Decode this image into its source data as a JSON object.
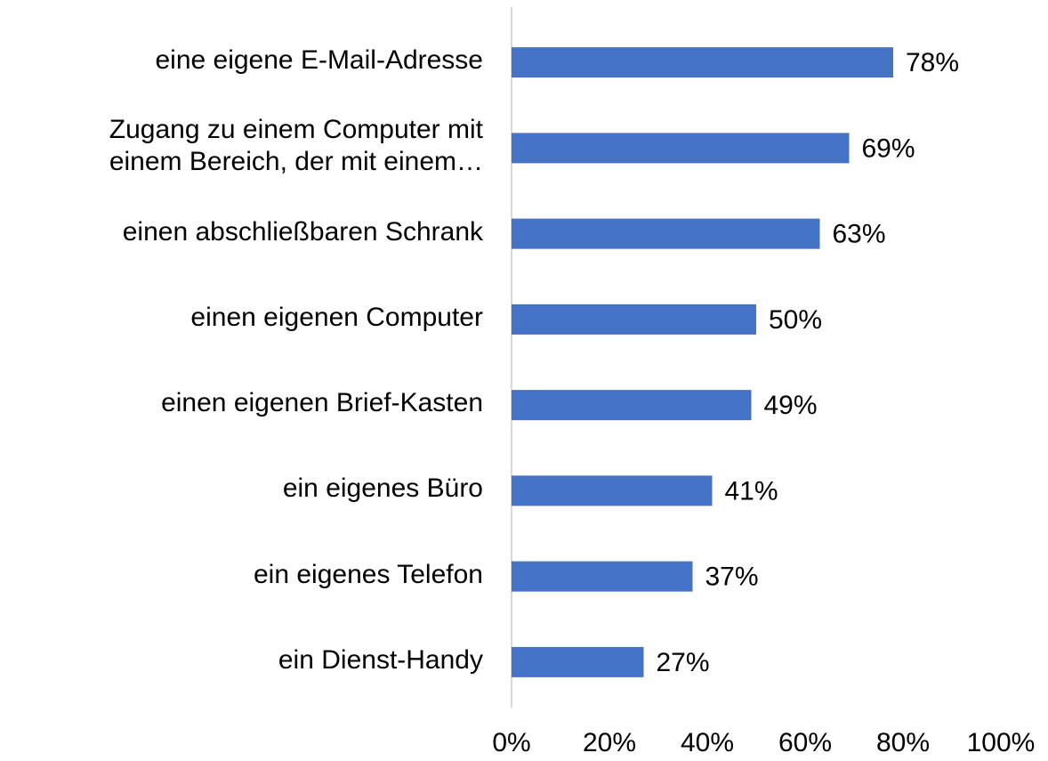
{
  "chart_data": {
    "type": "barh",
    "categories": [
      "eine eigene E-Mail-Adresse",
      "Zugang zu einem Computer mit\neinem Bereich, der mit einem…",
      "einen abschließbaren Schrank",
      "einen eigenen Computer",
      "einen eigenen Brief-Kasten",
      "ein eigenes Büro",
      "ein eigenes Telefon",
      "ein Dienst-Handy"
    ],
    "values": [
      78,
      69,
      63,
      50,
      49,
      41,
      37,
      27
    ],
    "value_labels": [
      "78%",
      "69%",
      "63%",
      "50%",
      "49%",
      "41%",
      "37%",
      "27%"
    ],
    "color": "#4472c4",
    "xlim": [
      0,
      100
    ],
    "xticks": [
      {
        "value": 0,
        "label": "0%"
      },
      {
        "value": 20,
        "label": "20%"
      },
      {
        "value": 40,
        "label": "40%"
      },
      {
        "value": 60,
        "label": "60%"
      },
      {
        "value": 80,
        "label": "80%"
      },
      {
        "value": 100,
        "label": "100%"
      }
    ],
    "grid": false
  }
}
